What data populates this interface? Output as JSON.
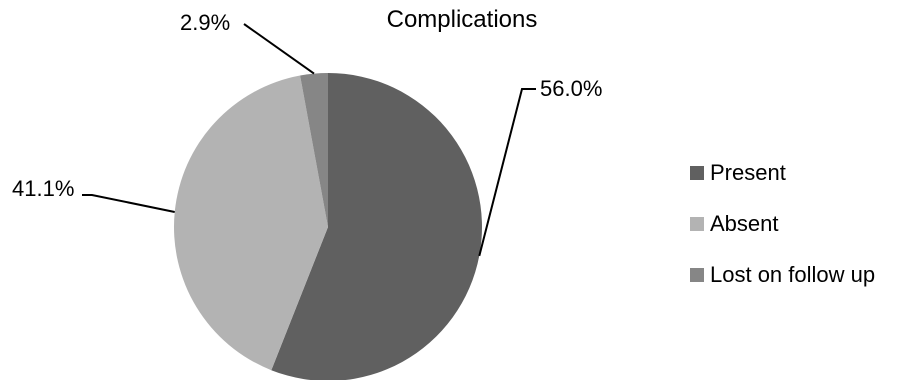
{
  "chart_data": {
    "type": "pie",
    "title": "Complications",
    "categories": [
      "Present",
      "Absent",
      "Lost on follow up"
    ],
    "values": [
      56.0,
      41.1,
      2.9
    ],
    "data_labels": [
      "56.0%",
      "41.1%",
      "2.9%"
    ],
    "colors": [
      "#606060",
      "#b3b3b3",
      "#868686"
    ],
    "legend_position": "right"
  }
}
